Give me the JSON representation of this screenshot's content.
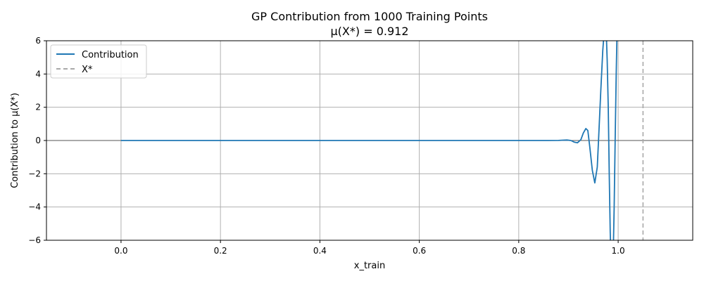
{
  "chart_data": {
    "type": "line",
    "title": "GP Contribution from 1000 Training Points",
    "subtitle": "μ(X*) = 0.912",
    "xlabel": "x_train",
    "ylabel": "Contribution to μ(X*)",
    "xlim": [
      -0.15,
      1.15
    ],
    "ylim": [
      -6,
      6
    ],
    "x_ticks": [
      0.0,
      0.2,
      0.4,
      0.6,
      0.8,
      1.0
    ],
    "x_tick_labels": [
      "0.0",
      "0.2",
      "0.4",
      "0.6",
      "0.8",
      "1.0"
    ],
    "y_ticks": [
      -6,
      -4,
      -2,
      0,
      2,
      4,
      6
    ],
    "y_tick_labels": [
      "−6",
      "−4",
      "−2",
      "0",
      "2",
      "4",
      "6"
    ],
    "grid": true,
    "legend_position": "top-left",
    "zero_line": true,
    "series": [
      {
        "name": "Contribution",
        "color": "#1f77b4",
        "x": [
          0.0,
          0.2,
          0.4,
          0.6,
          0.8,
          0.86,
          0.88,
          0.89,
          0.897,
          0.905,
          0.912,
          0.918,
          0.925,
          0.93,
          0.935,
          0.939,
          0.943,
          0.948,
          0.953,
          0.958,
          0.961,
          0.965,
          0.969,
          0.973,
          0.976,
          0.978,
          0.98,
          0.982,
          0.984,
          0.986,
          0.988,
          0.99,
          0.992,
          0.994,
          0.996,
          0.998,
          1.0
        ],
        "y": [
          0.0,
          0.0,
          0.0,
          0.0,
          0.0,
          0.0,
          0.005,
          0.02,
          0.03,
          0.0,
          -0.1,
          -0.14,
          0.05,
          0.45,
          0.72,
          0.6,
          -0.4,
          -1.8,
          -2.55,
          -1.6,
          0.3,
          3.0,
          5.4,
          7.0,
          6.6,
          4.8,
          2.0,
          -2.0,
          -5.5,
          -8.0,
          -8.5,
          -7.0,
          -4.0,
          0.0,
          4.0,
          7.0,
          8.0
        ]
      },
      {
        "name": "X*",
        "color": "#a9a9a9",
        "style": "dashed",
        "vertical_x": 1.05
      }
    ]
  }
}
